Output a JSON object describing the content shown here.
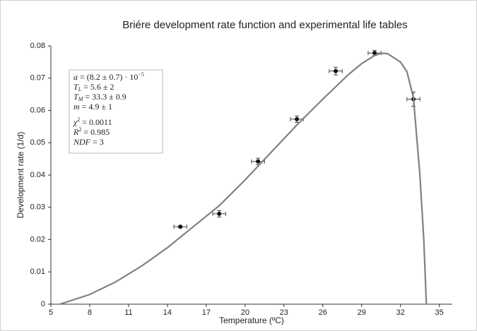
{
  "chart_data": {
    "type": "scatter",
    "title": "Briére development rate function and experimental life tables",
    "x_label": "Temperature (ºC)",
    "y_label": "Development rate (1/d)",
    "xlim": [
      5,
      36
    ],
    "xticks": [
      5,
      8,
      11,
      14,
      17,
      20,
      23,
      26,
      29,
      32,
      35
    ],
    "ylim": [
      0,
      0.08
    ],
    "yticks": [
      0,
      0.01,
      0.02,
      0.03,
      0.04,
      0.05,
      0.06,
      0.07,
      0.08
    ],
    "grid": false,
    "series": [
      {
        "type": "scatter",
        "color": "#111111",
        "x": [
          15,
          18,
          21,
          24,
          27,
          30,
          33
        ],
        "values": [
          0.024,
          0.028,
          0.0442,
          0.0573,
          0.0722,
          0.0778,
          0.0635
        ],
        "xerr": [
          0.5,
          0.5,
          0.5,
          0.5,
          0.5,
          0.5,
          0.5
        ],
        "yerr": [
          0.0003,
          0.001,
          0.001,
          0.001,
          0.0012,
          0.0008,
          0.0022
        ]
      },
      {
        "type": "line",
        "color": "#808080",
        "x": [
          5.7,
          8,
          10,
          12,
          14,
          16,
          18,
          20,
          22,
          24,
          26,
          28,
          29,
          30,
          30.5,
          31,
          32,
          32.5,
          33,
          33.5,
          33.8,
          34
        ],
        "values": [
          0,
          0.003,
          0.0069,
          0.0118,
          0.0175,
          0.024,
          0.0305,
          0.0385,
          0.047,
          0.0555,
          0.0635,
          0.0712,
          0.0745,
          0.077,
          0.0777,
          0.0776,
          0.075,
          0.072,
          0.064,
          0.04,
          0.02,
          0
        ]
      }
    ],
    "annotations": [
      {
        "symbol": "a",
        "text": " = (8.2 ± 0.7) · 10",
        "sup": "−5"
      },
      {
        "symbol": "T",
        "sub": "L",
        "text": " = 5.6 ± 2"
      },
      {
        "symbol": "T",
        "sub": "M",
        "text": " = 33.3 ± 0.9"
      },
      {
        "symbol": "m",
        "text": " = 4.9 ± 1"
      },
      {
        "symbol": "χ",
        "sup": "2",
        "text": " = 0.0011"
      },
      {
        "symbol": "R",
        "sup": "2",
        "text": " = 0.985"
      },
      {
        "symbol": "NDF",
        "text": " = 3"
      }
    ]
  }
}
